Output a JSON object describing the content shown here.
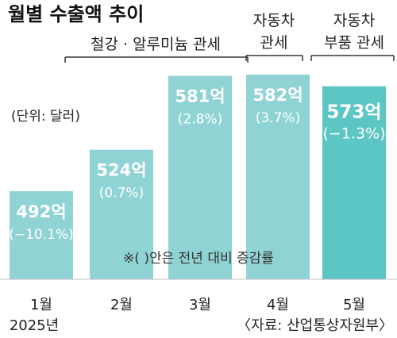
{
  "chart_data": {
    "type": "bar",
    "title": "월별 수출액 추이",
    "unit_note": "(단위: 달러)",
    "categories": [
      "1월",
      "2월",
      "3월",
      "4월",
      "5월"
    ],
    "values": [
      492,
      524,
      581,
      582,
      573
    ],
    "value_labels": [
      "492억",
      "524억",
      "581억",
      "582억",
      "573억"
    ],
    "change_labels": [
      "(−10.1%)",
      "(0.7%)",
      "(2.8%)",
      "(3.7%)",
      "(−1.3%)"
    ],
    "year_label": "2025년",
    "annotations": [
      {
        "text": "철강 · 알루미늄 관세"
      },
      {
        "lines": [
          "자동차",
          "관세"
        ]
      },
      {
        "lines": [
          "자동차",
          "부품 관세"
        ]
      }
    ],
    "footnote": "※(  )안은 전년 대비 증감률",
    "source": "〈자료: 산업통상자원부〉",
    "bar_colors": [
      "#8fd3d5",
      "#8fd3d5",
      "#8fd3d5",
      "#8fd3d5",
      "#5cc6c5"
    ],
    "ylim": [
      400,
      600
    ],
    "grid": false,
    "legend": "none"
  }
}
